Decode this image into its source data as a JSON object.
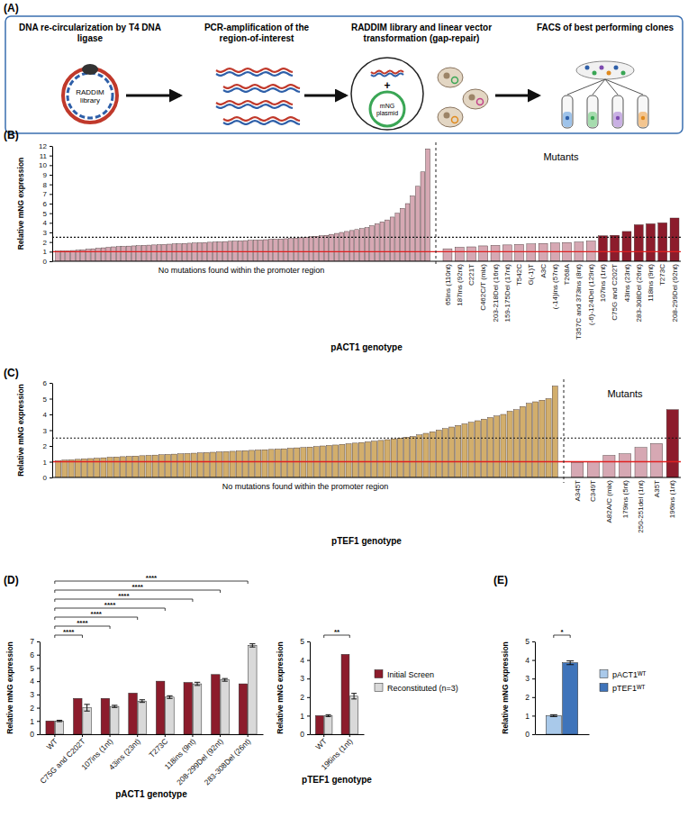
{
  "diagram": {
    "label": "(A)",
    "steps": [
      "DNA re-circularization by T4 DNA ligase",
      "PCR-amplification of the region-of-interest",
      "RADDIM library and linear vector transformation (gap-repair)",
      "FACS of best performing clones"
    ],
    "library_label": "RADDIM library",
    "plus": "+",
    "plasmid_label": "mNG plasmid"
  },
  "chart_data": [
    {
      "panel": "(B)",
      "type": "bar",
      "y_label": "Relative mNG expression",
      "x_label": "pACT1 genotype",
      "annotations": [
        "No mutations found within the promoter region",
        "Mutants"
      ],
      "ylim": [
        0,
        12
      ],
      "yticks": [
        0,
        1,
        2,
        3,
        4,
        5,
        6,
        7,
        8,
        9,
        10,
        11,
        12
      ],
      "hlines": [
        {
          "value": 1,
          "color": "#e02020",
          "line_style": "solid"
        },
        {
          "value": 2.5,
          "color": "#111111",
          "line_style": "dotted"
        }
      ],
      "categories": [
        null,
        null,
        null,
        null,
        null,
        null,
        null,
        null,
        null,
        null,
        null,
        null,
        null,
        null,
        null,
        null,
        null,
        null,
        null,
        null,
        null,
        null,
        null,
        null,
        null,
        null,
        null,
        null,
        null,
        null,
        null,
        null,
        null,
        null,
        null,
        null,
        null,
        null,
        null,
        null,
        null,
        null,
        null,
        null,
        null,
        null,
        null,
        null,
        null,
        null,
        null,
        null,
        null,
        null,
        null,
        null,
        null,
        null,
        null,
        null,
        null,
        null,
        null,
        null,
        null,
        null,
        null,
        null,
        null,
        null,
        null,
        null,
        null,
        null,
        "65ins (110nt)",
        "187ins (92nt)",
        "C221T",
        "C462C/T (mix)",
        "203-218Del (16nt)",
        "159-175Del (17nt)",
        "T542C",
        "G(-1)T",
        "A3C",
        "(-14)ins (57nt)",
        "T268A",
        "T357C and 373ins (8nt)",
        "(-6)-124Del (129nt)",
        "107ins (1nt)",
        "C75G and C202T",
        "43ins (23nt)",
        "283-308Del (26nt)",
        "118ins (9nt)",
        "T273C",
        "208-299Del (92nt)"
      ],
      "values": [
        1.05,
        1.08,
        1.1,
        1.12,
        1.15,
        1.2,
        1.25,
        1.3,
        1.35,
        1.4,
        1.45,
        1.5,
        1.52,
        1.55,
        1.58,
        1.6,
        1.62,
        1.65,
        1.68,
        1.7,
        1.72,
        1.75,
        1.78,
        1.8,
        1.82,
        1.85,
        1.88,
        1.9,
        1.92,
        1.95,
        1.98,
        2.0,
        2.02,
        2.05,
        2.08,
        2.1,
        2.12,
        2.15,
        2.18,
        2.2,
        2.22,
        2.25,
        2.28,
        2.3,
        2.32,
        2.35,
        2.38,
        2.4,
        2.45,
        2.5,
        2.55,
        2.6,
        2.65,
        2.7,
        2.8,
        2.9,
        3.0,
        3.1,
        3.2,
        3.3,
        3.4,
        3.5,
        3.7,
        3.9,
        4.1,
        4.3,
        4.6,
        5.0,
        5.5,
        6.0,
        6.8,
        7.8,
        9.3,
        11.7,
        1.3,
        1.45,
        1.5,
        1.6,
        1.65,
        1.7,
        1.75,
        1.8,
        1.85,
        1.9,
        1.95,
        2.0,
        2.1,
        2.65,
        2.7,
        3.1,
        3.8,
        3.9,
        4.0,
        4.5
      ],
      "colors": [
        "#d6a8b3",
        "#d6a8b3",
        "#d6a8b3",
        "#d6a8b3",
        "#d6a8b3",
        "#d6a8b3",
        "#d6a8b3",
        "#d6a8b3",
        "#d6a8b3",
        "#d6a8b3",
        "#d6a8b3",
        "#d6a8b3",
        "#d6a8b3",
        "#d6a8b3",
        "#d6a8b3",
        "#d6a8b3",
        "#d6a8b3",
        "#d6a8b3",
        "#d6a8b3",
        "#d6a8b3",
        "#d6a8b3",
        "#d6a8b3",
        "#d6a8b3",
        "#d6a8b3",
        "#d6a8b3",
        "#d6a8b3",
        "#d6a8b3",
        "#d6a8b3",
        "#d6a8b3",
        "#d6a8b3",
        "#d6a8b3",
        "#d6a8b3",
        "#d6a8b3",
        "#d6a8b3",
        "#d6a8b3",
        "#d6a8b3",
        "#d6a8b3",
        "#d6a8b3",
        "#d6a8b3",
        "#d6a8b3",
        "#d6a8b3",
        "#d6a8b3",
        "#d6a8b3",
        "#d6a8b3",
        "#d6a8b3",
        "#d6a8b3",
        "#d6a8b3",
        "#d6a8b3",
        "#d6a8b3",
        "#d6a8b3",
        "#d6a8b3",
        "#d6a8b3",
        "#d6a8b3",
        "#d6a8b3",
        "#d6a8b3",
        "#d6a8b3",
        "#d6a8b3",
        "#d6a8b3",
        "#d6a8b3",
        "#d6a8b3",
        "#d6a8b3",
        "#d6a8b3",
        "#d6a8b3",
        "#d6a8b3",
        "#d6a8b3",
        "#d6a8b3",
        "#d6a8b3",
        "#d6a8b3",
        "#d6a8b3",
        "#d6a8b3",
        "#d6a8b3",
        "#d6a8b3",
        "#d6a8b3",
        "#d6a8b3",
        "#d6a8b3",
        "#d6a8b3",
        "#d6a8b3",
        "#d6a8b3",
        "#d6a8b3",
        "#d6a8b3",
        "#d6a8b3",
        "#d6a8b3",
        "#d6a8b3",
        "#d6a8b3",
        "#d6a8b3",
        "#d6a8b3",
        "#d6a8b3",
        "#8c1c2c",
        "#8c1c2c",
        "#8c1c2c",
        "#8c1c2c",
        "#8c1c2c",
        "#8c1c2c",
        "#8c1c2c"
      ]
    },
    {
      "panel": "(C)",
      "type": "bar",
      "y_label": "Relative mNG expression",
      "x_label": "pTEF1 genotype",
      "annotations": [
        "No mutations found within the promoter region",
        "Mutants"
      ],
      "ylim": [
        0,
        6
      ],
      "yticks": [
        0,
        1,
        2,
        3,
        4,
        5,
        6
      ],
      "hlines": [
        {
          "value": 1,
          "color": "#e02020",
          "line_style": "solid"
        },
        {
          "value": 2.5,
          "color": "#111111",
          "line_style": "dotted"
        }
      ],
      "categories": [
        null,
        null,
        null,
        null,
        null,
        null,
        null,
        null,
        null,
        null,
        null,
        null,
        null,
        null,
        null,
        null,
        null,
        null,
        null,
        null,
        null,
        null,
        null,
        null,
        null,
        null,
        null,
        null,
        null,
        null,
        null,
        null,
        null,
        null,
        null,
        null,
        null,
        null,
        null,
        null,
        null,
        null,
        null,
        null,
        null,
        null,
        null,
        null,
        null,
        null,
        null,
        null,
        null,
        null,
        null,
        null,
        null,
        null,
        null,
        null,
        null,
        null,
        null,
        null,
        null,
        null,
        null,
        null,
        null,
        null,
        null,
        null,
        null,
        null,
        null,
        null,
        null,
        null,
        "A345T",
        "C349T",
        "A82A/C (mix)",
        "179ins (5nt)",
        "250-251del (1nt)",
        "A35T",
        "196ins (1nt)"
      ],
      "values": [
        1.05,
        1.1,
        1.12,
        1.15,
        1.18,
        1.2,
        1.22,
        1.25,
        1.28,
        1.3,
        1.32,
        1.34,
        1.36,
        1.38,
        1.4,
        1.42,
        1.44,
        1.46,
        1.48,
        1.5,
        1.52,
        1.54,
        1.56,
        1.58,
        1.6,
        1.62,
        1.64,
        1.66,
        1.68,
        1.7,
        1.72,
        1.74,
        1.76,
        1.78,
        1.8,
        1.82,
        1.85,
        1.88,
        1.9,
        1.93,
        1.96,
        2.0,
        2.03,
        2.06,
        2.1,
        2.14,
        2.18,
        2.22,
        2.26,
        2.3,
        2.35,
        2.4,
        2.45,
        2.5,
        2.55,
        2.6,
        2.7,
        2.8,
        2.9,
        3.0,
        3.1,
        3.2,
        3.3,
        3.4,
        3.5,
        3.6,
        3.7,
        3.8,
        3.9,
        4.0,
        4.2,
        4.3,
        4.5,
        4.7,
        4.8,
        4.9,
        5.0,
        5.8,
        0.95,
        1.0,
        1.4,
        1.5,
        1.9,
        2.15,
        4.3
      ],
      "colors": [
        "#d2ae6c",
        "#d2ae6c",
        "#d2ae6c",
        "#d2ae6c",
        "#d2ae6c",
        "#d2ae6c",
        "#d2ae6c",
        "#d2ae6c",
        "#d2ae6c",
        "#d2ae6c",
        "#d2ae6c",
        "#d2ae6c",
        "#d2ae6c",
        "#d2ae6c",
        "#d2ae6c",
        "#d2ae6c",
        "#d2ae6c",
        "#d2ae6c",
        "#d2ae6c",
        "#d2ae6c",
        "#d2ae6c",
        "#d2ae6c",
        "#d2ae6c",
        "#d2ae6c",
        "#d2ae6c",
        "#d2ae6c",
        "#d2ae6c",
        "#d2ae6c",
        "#d2ae6c",
        "#d2ae6c",
        "#d2ae6c",
        "#d2ae6c",
        "#d2ae6c",
        "#d2ae6c",
        "#d2ae6c",
        "#d2ae6c",
        "#d2ae6c",
        "#d2ae6c",
        "#d2ae6c",
        "#d2ae6c",
        "#d2ae6c",
        "#d2ae6c",
        "#d2ae6c",
        "#d2ae6c",
        "#d2ae6c",
        "#d2ae6c",
        "#d2ae6c",
        "#d2ae6c",
        "#d2ae6c",
        "#d2ae6c",
        "#d2ae6c",
        "#d2ae6c",
        "#d2ae6c",
        "#d2ae6c",
        "#d2ae6c",
        "#d2ae6c",
        "#d2ae6c",
        "#d2ae6c",
        "#d2ae6c",
        "#d2ae6c",
        "#d2ae6c",
        "#d2ae6c",
        "#d2ae6c",
        "#d2ae6c",
        "#d2ae6c",
        "#d2ae6c",
        "#d2ae6c",
        "#d2ae6c",
        "#d2ae6c",
        "#d2ae6c",
        "#d2ae6c",
        "#d2ae6c",
        "#d2ae6c",
        "#d2ae6c",
        "#d2ae6c",
        "#d2ae6c",
        "#d2ae6c",
        "#d2ae6c",
        "#d6a8b3",
        "#d6a8b3",
        "#d6a8b3",
        "#d6a8b3",
        "#d6a8b3",
        "#d6a8b3",
        "#8c1c2c"
      ]
    },
    {
      "panel": "(D)",
      "type": "bar",
      "y_label": "Relative mNG expression",
      "x_label": "pACT1 genotype",
      "ylim": [
        0,
        7
      ],
      "yticks": [
        0,
        1,
        2,
        3,
        4,
        5,
        6,
        7
      ],
      "categories": [
        "WT",
        "C75G and C202T",
        "107ins (1nt)",
        "43ins (23nt)",
        "T273C",
        "118ins (9nt)",
        "208-299Del (92nt)",
        "283-308Del (26nt)"
      ],
      "series": [
        {
          "color": "#8c1c2c",
          "values": [
            1.0,
            2.7,
            2.7,
            3.1,
            4.0,
            3.9,
            4.5,
            3.8
          ]
        },
        {
          "color": "#d9d9d9",
          "values": [
            1.0,
            2.0,
            2.1,
            2.5,
            2.8,
            3.8,
            4.1,
            6.7
          ],
          "errors": [
            0.05,
            0.25,
            0.08,
            0.1,
            0.1,
            0.12,
            0.1,
            0.12
          ]
        }
      ],
      "significance": [
        {
          "between": [
            "WT",
            "C75G and C202T"
          ],
          "label": "****"
        },
        {
          "between": [
            "WT",
            "107ins (1nt)"
          ],
          "label": "****"
        },
        {
          "between": [
            "WT",
            "43ins (23nt)"
          ],
          "label": "****"
        },
        {
          "between": [
            "WT",
            "T273C"
          ],
          "label": "****"
        },
        {
          "between": [
            "WT",
            "118ins (9nt)"
          ],
          "label": "****"
        },
        {
          "between": [
            "WT",
            "208-299Del (92nt)"
          ],
          "label": "****"
        },
        {
          "between": [
            "WT",
            "283-308Del (26nt)"
          ],
          "label": "****"
        }
      ]
    },
    {
      "type": "bar",
      "y_label": "Relative mNG expression",
      "x_label": "pTEF1 genotype",
      "ylim": [
        0,
        5
      ],
      "yticks": [
        0,
        1,
        2,
        3,
        4,
        5
      ],
      "legend": "right",
      "categories": [
        "WT",
        "196ins (1nt)"
      ],
      "series": [
        {
          "name": "Initial Screen",
          "color": "#8c1c2c",
          "values": [
            1.0,
            4.3
          ]
        },
        {
          "name": "Reconstituted (n=3)",
          "color": "#d9d9d9",
          "values": [
            1.0,
            2.05
          ],
          "errors": [
            0.05,
            0.15
          ]
        }
      ],
      "significance": [
        {
          "between": [
            "WT",
            "196ins (1nt)"
          ],
          "label": "**"
        }
      ]
    },
    {
      "panel": "(E)",
      "type": "bar",
      "y_label": "Relative mNG expression",
      "ylim": [
        0,
        5
      ],
      "yticks": [
        0,
        1,
        2,
        3,
        4,
        5
      ],
      "tick_labels": "y",
      "legend": "right",
      "categories": [
        null
      ],
      "series": [
        {
          "name": "pACT1ᵂᵀ",
          "color": "#a9c9ea",
          "values": [
            1.0
          ],
          "errors": [
            0.05
          ]
        },
        {
          "name": "pTEF1ᵂᵀ",
          "color": "#3f74ba",
          "values": [
            3.85
          ],
          "errors": [
            0.1
          ]
        }
      ],
      "significance": [
        {
          "between": [
            "pACT1ᵂᵀ",
            "pTEF1ᵂᵀ"
          ],
          "label": "*"
        }
      ]
    }
  ]
}
